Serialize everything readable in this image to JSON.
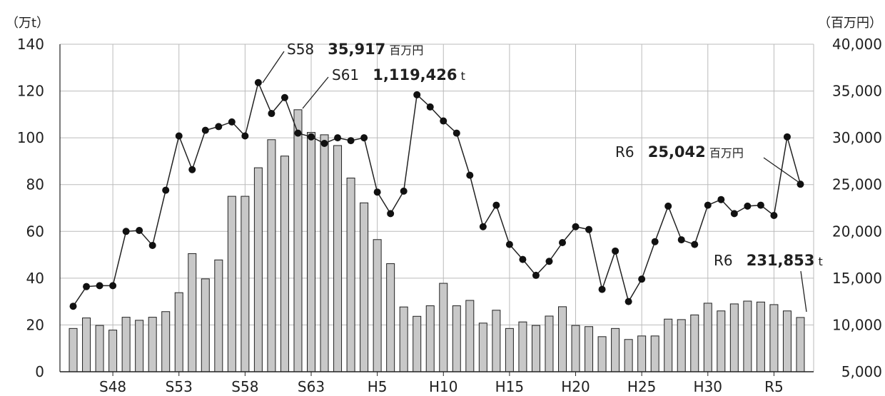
{
  "chart_data": {
    "type": "bar+line",
    "left_axis": {
      "unit": "（万t）",
      "ticks": [
        "0",
        "20",
        "40",
        "60",
        "80",
        "100",
        "120",
        "140"
      ],
      "range": [
        0,
        140
      ]
    },
    "right_axis": {
      "unit": "（百万円）",
      "ticks": [
        "5,000",
        "10,000",
        "15,000",
        "20,000",
        "25,000",
        "30,000",
        "35,000",
        "40,000"
      ],
      "range": [
        5000,
        40000
      ]
    },
    "x_labels": [
      {
        "label": "S48",
        "index": 3
      },
      {
        "label": "S53",
        "index": 8
      },
      {
        "label": "S58",
        "index": 13
      },
      {
        "label": "S63",
        "index": 18
      },
      {
        "label": "H5",
        "index": 23
      },
      {
        "label": "H10",
        "index": 28
      },
      {
        "label": "H15",
        "index": 33
      },
      {
        "label": "H20",
        "index": 38
      },
      {
        "label": "H25",
        "index": 43
      },
      {
        "label": "H30",
        "index": 48
      },
      {
        "label": "R5",
        "index": 53
      }
    ],
    "grid": true,
    "bars_volume": [
      18.5,
      23,
      19.8,
      17.8,
      23.3,
      22,
      23.3,
      25.7,
      33.8,
      50.5,
      39.7,
      47.8,
      75,
      75,
      87.2,
      99.2,
      92.2,
      112,
      102.3,
      101.3,
      96.7,
      82.8,
      72.2,
      56.5,
      46.2,
      27.7,
      23.7,
      28.2,
      37.8,
      28.2,
      30.5,
      20.8,
      26.3,
      18.5,
      21.3,
      19.8,
      23.8,
      27.8,
      19.8,
      19.3,
      15,
      18.5,
      13.8,
      15.3,
      15.3,
      22.5,
      22.3,
      24.3,
      29.3,
      26,
      29,
      30.2,
      29.8,
      28.7,
      26,
      23.2
    ],
    "line_value": [
      12000,
      14100,
      14200,
      14200,
      20000,
      20100,
      18500,
      24400,
      30200,
      26600,
      30800,
      31200,
      31700,
      30200,
      35900,
      32600,
      34300,
      30500,
      30100,
      29400,
      30000,
      29700,
      30000,
      24200,
      21900,
      24300,
      34600,
      33300,
      31800,
      30500,
      26000,
      20500,
      22800,
      18600,
      17000,
      15300,
      16800,
      18800,
      20500,
      20200,
      13800,
      17900,
      12500,
      14900,
      18900,
      22700,
      19100,
      18600,
      22800,
      23400,
      21900,
      22700,
      22800,
      21700,
      30100,
      25042
    ],
    "annotations": {
      "s58": {
        "era": "S58",
        "value": "35,917",
        "unit": "百万円"
      },
      "s61": {
        "era": "S61",
        "value": "1,119,426",
        "unit": "t"
      },
      "r6_value": {
        "era": "R6",
        "value": "25,042",
        "unit": "百万円"
      },
      "r6_volume": {
        "era": "R6",
        "value": "231,853",
        "unit": "t"
      }
    },
    "colors": {
      "bar_fill": "#c8c8c8",
      "bar_stroke": "#222222",
      "line": "#222222",
      "marker": "#111111",
      "grid": "#bbbbbb"
    }
  }
}
